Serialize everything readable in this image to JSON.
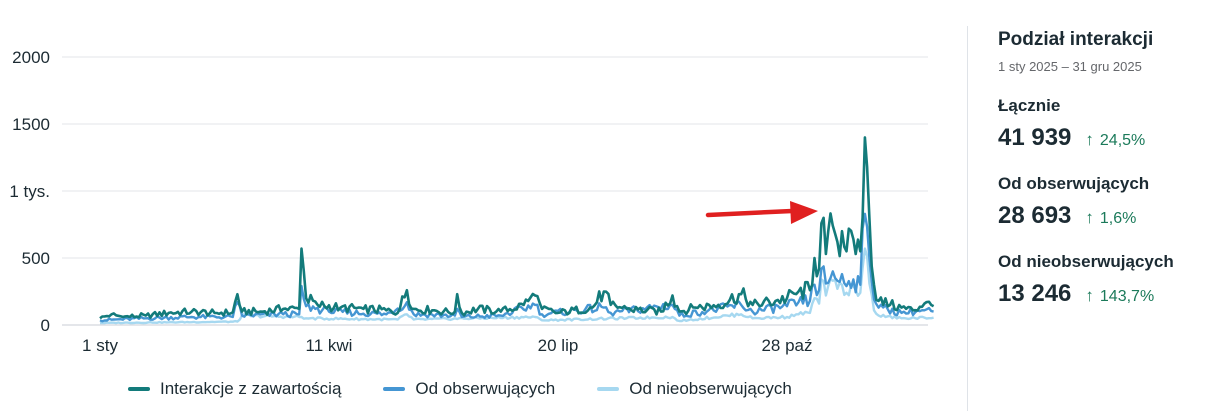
{
  "chart_data": {
    "type": "line",
    "title": "",
    "xlabel": "",
    "ylabel": "",
    "ylim": [
      0,
      2000
    ],
    "y_ticks": [
      {
        "value": 0,
        "label": "0"
      },
      {
        "value": 500,
        "label": "500"
      },
      {
        "value": 1000,
        "label": "1 tys."
      },
      {
        "value": 1500,
        "label": "1500"
      },
      {
        "value": 2000,
        "label": "2000"
      }
    ],
    "x_ticks": [
      {
        "label": "1 sty",
        "day": 0
      },
      {
        "label": "11 kwi",
        "day": 100
      },
      {
        "label": "20 lip",
        "day": 200
      },
      {
        "label": "28 paź",
        "day": 300
      }
    ],
    "grid": true,
    "legend_position": "bottom",
    "annotation": "red-arrow-pointing-right",
    "series": [
      {
        "name": "Interakcje z zawartością",
        "color": "#137b7b",
        "keypoints": [
          [
            0,
            50
          ],
          [
            5,
            80
          ],
          [
            10,
            60
          ],
          [
            20,
            70
          ],
          [
            30,
            90
          ],
          [
            40,
            100
          ],
          [
            50,
            90
          ],
          [
            58,
            95
          ],
          [
            60,
            230
          ],
          [
            62,
            100
          ],
          [
            70,
            100
          ],
          [
            80,
            120
          ],
          [
            87,
            120
          ],
          [
            88,
            570
          ],
          [
            90,
            200
          ],
          [
            95,
            150
          ],
          [
            105,
            130
          ],
          [
            115,
            120
          ],
          [
            125,
            110
          ],
          [
            130,
            90
          ],
          [
            134,
            260
          ],
          [
            137,
            120
          ],
          [
            145,
            110
          ],
          [
            150,
            100
          ],
          [
            155,
            100
          ],
          [
            156,
            230
          ],
          [
            158,
            90
          ],
          [
            165,
            120
          ],
          [
            175,
            100
          ],
          [
            185,
            150
          ],
          [
            190,
            220
          ],
          [
            193,
            120
          ],
          [
            200,
            90
          ],
          [
            215,
            130
          ],
          [
            220,
            250
          ],
          [
            223,
            150
          ],
          [
            230,
            120
          ],
          [
            245,
            100
          ],
          [
            250,
            220
          ],
          [
            253,
            100
          ],
          [
            260,
            130
          ],
          [
            270,
            150
          ],
          [
            280,
            230
          ],
          [
            285,
            150
          ],
          [
            295,
            180
          ],
          [
            300,
            200
          ],
          [
            305,
            250
          ],
          [
            310,
            260
          ],
          [
            312,
            500
          ],
          [
            314,
            420
          ],
          [
            315,
            760
          ],
          [
            317,
            530
          ],
          [
            320,
            740
          ],
          [
            322,
            620
          ],
          [
            324,
            700
          ],
          [
            326,
            550
          ],
          [
            329,
            640
          ],
          [
            332,
            550
          ],
          [
            334,
            1400
          ],
          [
            336,
            800
          ],
          [
            338,
            300
          ],
          [
            340,
            180
          ],
          [
            345,
            150
          ],
          [
            350,
            130
          ],
          [
            355,
            110
          ],
          [
            360,
            160
          ],
          [
            364,
            140
          ]
        ]
      },
      {
        "name": "Od obserwujących",
        "color": "#4596d3",
        "keypoints": [
          [
            0,
            35
          ],
          [
            20,
            50
          ],
          [
            40,
            60
          ],
          [
            58,
            60
          ],
          [
            60,
            170
          ],
          [
            62,
            70
          ],
          [
            80,
            80
          ],
          [
            87,
            80
          ],
          [
            88,
            290
          ],
          [
            90,
            140
          ],
          [
            100,
            100
          ],
          [
            125,
            80
          ],
          [
            134,
            170
          ],
          [
            137,
            80
          ],
          [
            155,
            70
          ],
          [
            156,
            120
          ],
          [
            158,
            60
          ],
          [
            175,
            70
          ],
          [
            190,
            150
          ],
          [
            193,
            80
          ],
          [
            220,
            130
          ],
          [
            223,
            90
          ],
          [
            250,
            150
          ],
          [
            253,
            70
          ],
          [
            280,
            150
          ],
          [
            285,
            100
          ],
          [
            300,
            140
          ],
          [
            305,
            170
          ],
          [
            310,
            180
          ],
          [
            312,
            300
          ],
          [
            314,
            260
          ],
          [
            315,
            420
          ],
          [
            317,
            310
          ],
          [
            320,
            400
          ],
          [
            322,
            330
          ],
          [
            324,
            380
          ],
          [
            326,
            290
          ],
          [
            329,
            340
          ],
          [
            332,
            300
          ],
          [
            334,
            830
          ],
          [
            336,
            500
          ],
          [
            338,
            190
          ],
          [
            340,
            130
          ],
          [
            350,
            90
          ],
          [
            360,
            110
          ],
          [
            364,
            100
          ]
        ]
      },
      {
        "name": "Od nieobserwujących",
        "color": "#a6d8f0",
        "keypoints": [
          [
            0,
            15
          ],
          [
            30,
            20
          ],
          [
            60,
            25
          ],
          [
            62,
            70
          ],
          [
            88,
            60
          ],
          [
            90,
            50
          ],
          [
            130,
            40
          ],
          [
            134,
            80
          ],
          [
            137,
            40
          ],
          [
            190,
            60
          ],
          [
            193,
            35
          ],
          [
            250,
            60
          ],
          [
            253,
            30
          ],
          [
            280,
            80
          ],
          [
            285,
            50
          ],
          [
            300,
            60
          ],
          [
            305,
            80
          ],
          [
            310,
            90
          ],
          [
            312,
            200
          ],
          [
            314,
            160
          ],
          [
            315,
            340
          ],
          [
            317,
            220
          ],
          [
            320,
            330
          ],
          [
            322,
            270
          ],
          [
            324,
            300
          ],
          [
            326,
            240
          ],
          [
            329,
            290
          ],
          [
            332,
            240
          ],
          [
            334,
            570
          ],
          [
            336,
            310
          ],
          [
            338,
            110
          ],
          [
            340,
            70
          ],
          [
            350,
            50
          ],
          [
            364,
            55
          ]
        ]
      }
    ]
  },
  "panel": {
    "title": "Podział interakcji",
    "date_range": "1 sty 2025 – 31 gru 2025",
    "metrics": [
      {
        "label": "Łącznie",
        "value": "41 939",
        "change": "24,5%"
      },
      {
        "label": "Od obserwujących",
        "value": "28 693",
        "change": "1,6%"
      },
      {
        "label": "Od nieobserwujących",
        "value": "13 246",
        "change": "143,7%"
      }
    ]
  }
}
